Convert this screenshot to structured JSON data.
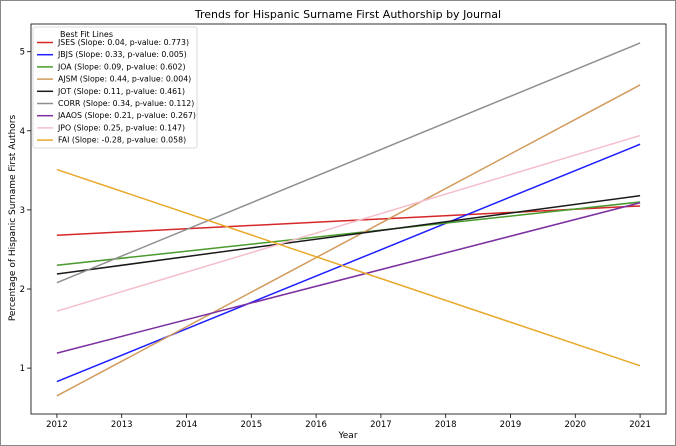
{
  "chart_data": {
    "type": "line",
    "title": "Trends for Hispanic Surname First Authorship by Journal",
    "xlabel": "Year",
    "ylabel": "Percentage of Hispanic Surname First Authors",
    "xlim": [
      2011.6,
      2021.4
    ],
    "ylim": [
      0.42,
      5.35
    ],
    "x_ticks": [
      "2012",
      "2013",
      "2014",
      "2015",
      "2016",
      "2017",
      "2018",
      "2019",
      "2020",
      "2021"
    ],
    "y_ticks": [
      "1",
      "2",
      "3",
      "4",
      "5"
    ],
    "grid": false,
    "legend_title": "Best Fit Lines",
    "legend_position": "upper-left",
    "x": [
      2012,
      2021
    ],
    "series": [
      {
        "name": "JSES (Slope: 0.04, p-value: 0.773)",
        "color": "#d62728",
        "values": [
          2.68,
          3.05
        ]
      },
      {
        "name": "JBJS (Slope: 0.33, p-value: 0.005)",
        "color": "#1f1fff",
        "values": [
          0.83,
          3.83
        ]
      },
      {
        "name": "JOA (Slope: 0.09, p-value: 0.602)",
        "color": "#4a9a2e",
        "values": [
          2.3,
          3.1
        ]
      },
      {
        "name": "AJSM (Slope: 0.44, p-value: 0.004)",
        "color": "#d29a5c",
        "values": [
          0.65,
          4.58
        ]
      },
      {
        "name": "JOT (Slope: 0.11, p-value: 0.461)",
        "color": "#1a1a1a",
        "values": [
          2.19,
          3.18
        ]
      },
      {
        "name": "CORR (Slope: 0.34, p-value: 0.112)",
        "color": "#8f8f8f",
        "values": [
          2.08,
          5.11
        ]
      },
      {
        "name": "JAAOS (Slope: 0.21, p-value: 0.267)",
        "color": "#7b2fa0",
        "values": [
          1.19,
          3.09
        ]
      },
      {
        "name": "JPO (Slope: 0.25, p-value: 0.147)",
        "color": "#f4bfcb",
        "values": [
          1.72,
          3.94
        ]
      },
      {
        "name": "FAI (Slope: -0.28, p-value: 0.058)",
        "color": "#e8a92a",
        "values": [
          3.51,
          1.03
        ]
      }
    ]
  }
}
